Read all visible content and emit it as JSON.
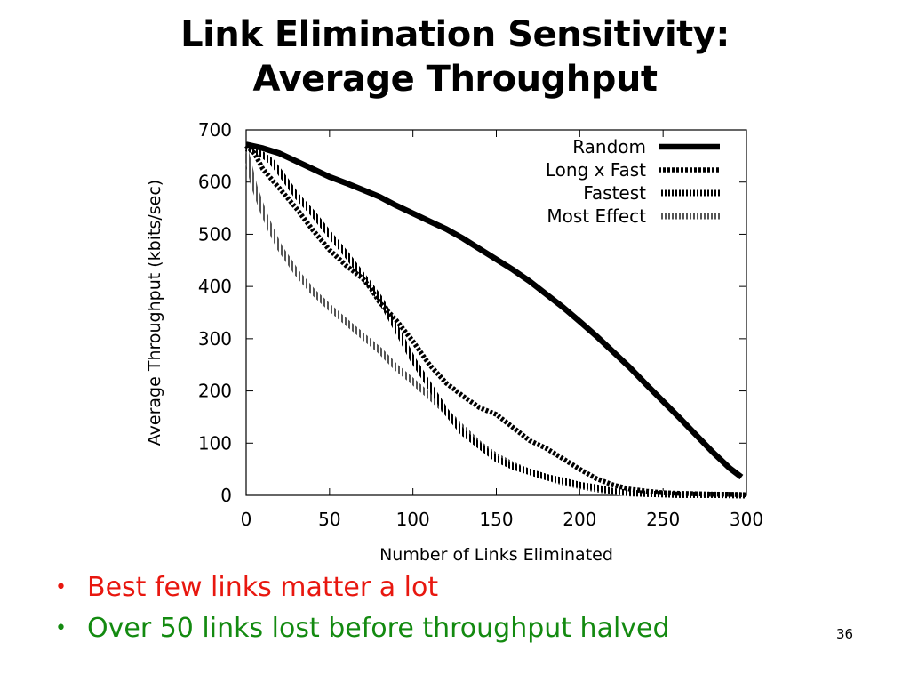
{
  "slide": {
    "title_line1": "Link Elimination Sensitivity:",
    "title_line2": "Average Throughput",
    "bullets": [
      {
        "text": "Best few links matter a lot",
        "color": "#e8170f"
      },
      {
        "text": "Over 50 links lost before throughput halved",
        "color": "#138a10"
      }
    ],
    "page_number": "36"
  },
  "chart_data": {
    "type": "line",
    "xlabel": "Number of Links Eliminated",
    "ylabel": "Average Throughput (kbits/sec)",
    "xlim": [
      0,
      300
    ],
    "ylim": [
      0,
      700
    ],
    "xticks": [
      0,
      50,
      100,
      150,
      200,
      250,
      300
    ],
    "yticks": [
      0,
      100,
      200,
      300,
      400,
      500,
      600,
      700
    ],
    "grid": false,
    "legend_position": "top-right",
    "series": [
      {
        "name": "Random",
        "style": "solid-thick",
        "color": "#000000",
        "points": [
          [
            0,
            672
          ],
          [
            10,
            665
          ],
          [
            20,
            655
          ],
          [
            30,
            640
          ],
          [
            40,
            625
          ],
          [
            50,
            610
          ],
          [
            60,
            598
          ],
          [
            70,
            585
          ],
          [
            80,
            572
          ],
          [
            90,
            555
          ],
          [
            100,
            540
          ],
          [
            110,
            525
          ],
          [
            120,
            510
          ],
          [
            130,
            492
          ],
          [
            140,
            472
          ],
          [
            150,
            452
          ],
          [
            160,
            432
          ],
          [
            170,
            410
          ],
          [
            180,
            385
          ],
          [
            190,
            360
          ],
          [
            200,
            333
          ],
          [
            210,
            305
          ],
          [
            220,
            275
          ],
          [
            230,
            245
          ],
          [
            240,
            212
          ],
          [
            250,
            180
          ],
          [
            260,
            148
          ],
          [
            270,
            115
          ],
          [
            280,
            82
          ],
          [
            290,
            52
          ],
          [
            297,
            35
          ]
        ]
      },
      {
        "name": "Long x Fast",
        "style": "dense-dash",
        "color": "#000000",
        "points": [
          [
            0,
            670
          ],
          [
            5,
            655
          ],
          [
            10,
            625
          ],
          [
            20,
            588
          ],
          [
            30,
            550
          ],
          [
            40,
            508
          ],
          [
            50,
            470
          ],
          [
            60,
            440
          ],
          [
            70,
            415
          ],
          [
            75,
            395
          ],
          [
            80,
            370
          ],
          [
            90,
            335
          ],
          [
            100,
            295
          ],
          [
            110,
            250
          ],
          [
            120,
            215
          ],
          [
            130,
            190
          ],
          [
            140,
            168
          ],
          [
            150,
            155
          ],
          [
            160,
            130
          ],
          [
            170,
            105
          ],
          [
            180,
            90
          ],
          [
            190,
            70
          ],
          [
            200,
            50
          ],
          [
            210,
            32
          ],
          [
            220,
            20
          ],
          [
            230,
            12
          ],
          [
            240,
            8
          ],
          [
            250,
            5
          ],
          [
            260,
            4
          ],
          [
            270,
            3
          ],
          [
            280,
            2
          ],
          [
            290,
            2
          ],
          [
            300,
            1
          ]
        ]
      },
      {
        "name": "Fastest",
        "style": "hatched",
        "color": "#000000",
        "points": [
          [
            0,
            665
          ],
          [
            5,
            660
          ],
          [
            10,
            652
          ],
          [
            15,
            640
          ],
          [
            20,
            620
          ],
          [
            25,
            598
          ],
          [
            30,
            575
          ],
          [
            40,
            540
          ],
          [
            50,
            500
          ],
          [
            60,
            462
          ],
          [
            70,
            420
          ],
          [
            80,
            378
          ],
          [
            90,
            320
          ],
          [
            100,
            260
          ],
          [
            110,
            210
          ],
          [
            120,
            160
          ],
          [
            130,
            120
          ],
          [
            140,
            95
          ],
          [
            150,
            70
          ],
          [
            160,
            55
          ],
          [
            170,
            45
          ],
          [
            180,
            35
          ],
          [
            190,
            28
          ],
          [
            200,
            20
          ],
          [
            210,
            15
          ],
          [
            220,
            8
          ],
          [
            230,
            5
          ],
          [
            240,
            3
          ],
          [
            250,
            2
          ],
          [
            260,
            1
          ],
          [
            270,
            1
          ],
          [
            280,
            1
          ],
          [
            300,
            0
          ]
        ]
      },
      {
        "name": "Most Effect",
        "style": "hatched-gray",
        "color": "#666666",
        "points": [
          [
            0,
            655
          ],
          [
            5,
            590
          ],
          [
            10,
            545
          ],
          [
            15,
            508
          ],
          [
            20,
            475
          ],
          [
            25,
            452
          ],
          [
            30,
            428
          ],
          [
            40,
            390
          ],
          [
            50,
            360
          ],
          [
            60,
            332
          ],
          [
            70,
            305
          ],
          [
            80,
            278
          ],
          [
            90,
            245
          ],
          [
            100,
            218
          ],
          [
            110,
            190
          ],
          [
            120,
            160
          ],
          [
            130,
            128
          ],
          [
            140,
            98
          ],
          [
            150,
            75
          ],
          [
            160,
            58
          ],
          [
            170,
            45
          ],
          [
            180,
            35
          ],
          [
            190,
            25
          ],
          [
            200,
            18
          ],
          [
            210,
            12
          ],
          [
            220,
            7
          ],
          [
            230,
            4
          ],
          [
            240,
            3
          ],
          [
            250,
            2
          ],
          [
            260,
            1
          ],
          [
            270,
            1
          ],
          [
            280,
            1
          ],
          [
            300,
            0
          ]
        ]
      }
    ]
  }
}
